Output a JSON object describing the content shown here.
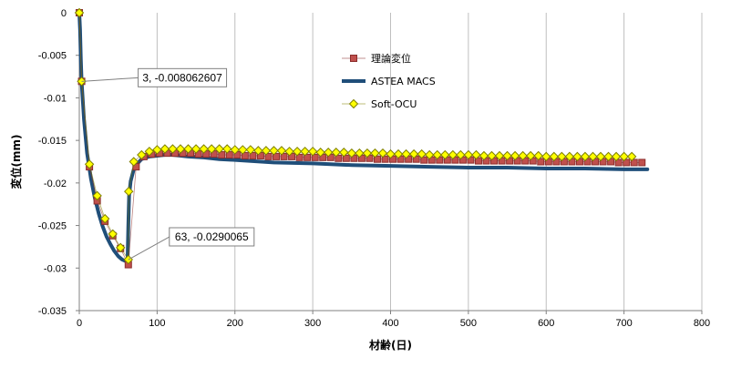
{
  "chart_data": {
    "type": "line",
    "xlabel": "材齢(日)",
    "ylabel": "変位(mm)",
    "xlim": [
      0,
      800
    ],
    "ylim": [
      -0.035,
      0
    ],
    "x_ticks": [
      0,
      100,
      200,
      300,
      400,
      500,
      600,
      700,
      800
    ],
    "y_ticks": [
      0,
      -0.005,
      -0.01,
      -0.015,
      -0.02,
      -0.025,
      -0.03,
      -0.035
    ],
    "x_tick_labels": [
      "0",
      "100",
      "200",
      "300",
      "400",
      "500",
      "600",
      "700",
      "800"
    ],
    "y_tick_labels": [
      "0",
      "-0.005",
      "-0.01",
      "-0.015",
      "-0.02",
      "-0.025",
      "-0.03",
      "-0.035"
    ],
    "grid": "vertical",
    "legend_position": "top-center",
    "series": [
      {
        "name": "理論変位",
        "marker": "square",
        "color": "#c0504d",
        "edge": "#8b2e2c",
        "x": [
          0,
          3,
          13,
          23,
          33,
          43,
          53,
          63,
          73,
          83,
          93,
          103,
          113,
          123,
          133,
          143,
          153,
          163,
          173,
          183,
          193,
          203,
          213,
          223,
          233,
          243,
          253,
          263,
          273,
          283,
          293,
          303,
          313,
          323,
          333,
          343,
          353,
          363,
          373,
          383,
          393,
          403,
          413,
          423,
          433,
          443,
          453,
          463,
          473,
          483,
          493,
          503,
          513,
          523,
          533,
          543,
          553,
          563,
          573,
          583,
          593,
          603,
          613,
          623,
          633,
          643,
          653,
          663,
          673,
          683,
          693,
          703,
          713,
          723
        ],
        "y": [
          0,
          -0.00806,
          -0.0181,
          -0.0221,
          -0.0245,
          -0.0262,
          -0.0277,
          -0.0296,
          -0.0181,
          -0.0169,
          -0.0166,
          -0.0165,
          -0.0165,
          -0.0165,
          -0.0165,
          -0.0165,
          -0.0166,
          -0.0166,
          -0.0166,
          -0.0167,
          -0.0167,
          -0.0167,
          -0.0168,
          -0.0168,
          -0.0168,
          -0.0169,
          -0.0169,
          -0.0169,
          -0.0169,
          -0.017,
          -0.017,
          -0.017,
          -0.017,
          -0.017,
          -0.0171,
          -0.0171,
          -0.0171,
          -0.0171,
          -0.0171,
          -0.0172,
          -0.0172,
          -0.0172,
          -0.0172,
          -0.0172,
          -0.0172,
          -0.0173,
          -0.0173,
          -0.0173,
          -0.0173,
          -0.0173,
          -0.0173,
          -0.0173,
          -0.0174,
          -0.0174,
          -0.0174,
          -0.0174,
          -0.0174,
          -0.0174,
          -0.0174,
          -0.0174,
          -0.0175,
          -0.0175,
          -0.0175,
          -0.0175,
          -0.0175,
          -0.0175,
          -0.0175,
          -0.0175,
          -0.0175,
          -0.0175,
          -0.0176,
          -0.0176,
          -0.0176,
          -0.0176
        ]
      },
      {
        "name": "ASTEA MACS",
        "marker": "none",
        "color": "#1f4e79",
        "x": [
          0,
          1,
          2,
          3,
          6,
          10,
          15,
          20,
          25,
          30,
          35,
          40,
          45,
          50,
          55,
          60,
          62,
          63,
          64,
          66,
          70,
          75,
          80,
          90,
          100,
          110,
          120,
          140,
          160,
          180,
          200,
          250,
          300,
          350,
          400,
          450,
          500,
          550,
          600,
          650,
          700,
          730
        ],
        "y": [
          0,
          -0.002,
          -0.0055,
          -0.0081,
          -0.0125,
          -0.0165,
          -0.0195,
          -0.0218,
          -0.0236,
          -0.0251,
          -0.0263,
          -0.0272,
          -0.028,
          -0.0286,
          -0.029,
          -0.0292,
          -0.0292,
          -0.025,
          -0.0215,
          -0.0198,
          -0.0184,
          -0.0177,
          -0.0172,
          -0.0169,
          -0.0168,
          -0.0167,
          -0.0167,
          -0.0169,
          -0.017,
          -0.0172,
          -0.0173,
          -0.0176,
          -0.0177,
          -0.0179,
          -0.018,
          -0.0181,
          -0.0182,
          -0.0182,
          -0.0183,
          -0.0183,
          -0.0184,
          -0.0184
        ]
      },
      {
        "name": "Soft-OCU",
        "marker": "diamond",
        "color": "#ffff00",
        "edge": "#7f7f00",
        "x": [
          0,
          3,
          13,
          23,
          33,
          43,
          53,
          63,
          63.5,
          70,
          80,
          90,
          100,
          110,
          120,
          130,
          140,
          150,
          160,
          170,
          180,
          190,
          200,
          210,
          220,
          230,
          240,
          250,
          260,
          270,
          280,
          290,
          300,
          310,
          320,
          330,
          340,
          350,
          360,
          370,
          380,
          390,
          400,
          410,
          420,
          430,
          440,
          450,
          460,
          470,
          480,
          490,
          500,
          510,
          520,
          530,
          540,
          550,
          560,
          570,
          580,
          590,
          600,
          610,
          620,
          630,
          640,
          650,
          660,
          670,
          680,
          690,
          700,
          710
        ],
        "y": [
          0,
          -0.00806,
          -0.0178,
          -0.0215,
          -0.0242,
          -0.026,
          -0.0276,
          -0.029,
          -0.021,
          -0.0175,
          -0.0167,
          -0.0163,
          -0.0161,
          -0.016,
          -0.016,
          -0.016,
          -0.016,
          -0.016,
          -0.016,
          -0.016,
          -0.016,
          -0.016,
          -0.0161,
          -0.0161,
          -0.0161,
          -0.0162,
          -0.0162,
          -0.0162,
          -0.0162,
          -0.0163,
          -0.0163,
          -0.0163,
          -0.0163,
          -0.0164,
          -0.0164,
          -0.0164,
          -0.0164,
          -0.0165,
          -0.0165,
          -0.0165,
          -0.0165,
          -0.0165,
          -0.0166,
          -0.0166,
          -0.0166,
          -0.0166,
          -0.0166,
          -0.0167,
          -0.0167,
          -0.0167,
          -0.0167,
          -0.0167,
          -0.0167,
          -0.0167,
          -0.0168,
          -0.0168,
          -0.0168,
          -0.0168,
          -0.0168,
          -0.0168,
          -0.0168,
          -0.0168,
          -0.0169,
          -0.0169,
          -0.0169,
          -0.0169,
          -0.0169,
          -0.0169,
          -0.0169,
          -0.0169,
          -0.0169,
          -0.0169,
          -0.0169,
          -0.0169
        ]
      }
    ],
    "annotations": [
      {
        "text": "3, -0.008062607",
        "x": 3,
        "y": -0.008062607
      },
      {
        "text": "63, -0.0290065",
        "x": 63,
        "y": -0.0290065
      }
    ]
  }
}
